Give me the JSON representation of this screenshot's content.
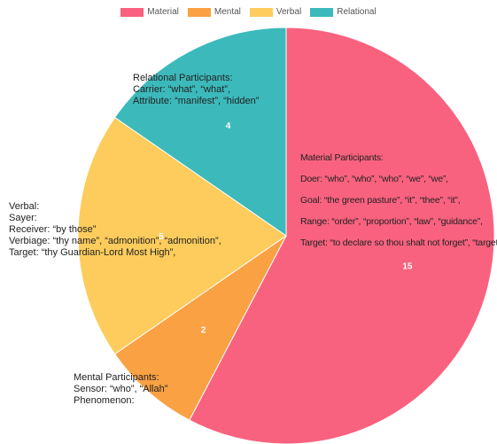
{
  "chart_data": {
    "type": "pie",
    "title": "",
    "legend_position": "top",
    "start_angle": "top",
    "slices": [
      {
        "name": "Material",
        "value": 15,
        "color": "#F9627F"
      },
      {
        "name": "Mental",
        "value": 2,
        "color": "#FAA143"
      },
      {
        "name": "Verbal",
        "value": 5,
        "color": "#FDCC5C"
      },
      {
        "name": "Relational",
        "value": 4,
        "color": "#3CB9BB"
      }
    ]
  },
  "annotations": {
    "relational": [
      "Relational Participants:",
      "Carrier: “what”, “what”,",
      "Attribute: “manifest”, “hidden”"
    ],
    "material": [
      "Material Participants:",
      "Doer: “who”, “who”, “who”, “we”, “we”,",
      "Goal: “the green pasture”, “it”, “thee”, “it”,",
      "Range: “order”, “proportion”, “law”, “guidance”,",
      "Target: “to declare so thou shalt not forget”, “target”,"
    ],
    "verbal": [
      "Verbal:",
      "Sayer:",
      "Receiver: “by those”",
      "Verbiage: “thy name”, “admonition”, “admonition”,",
      "Target: “thy Guardian-Lord Most High”,"
    ],
    "mental": [
      "Mental Participants:",
      "Sensor: “who”, “Allah”",
      "Phenomenon:"
    ]
  }
}
